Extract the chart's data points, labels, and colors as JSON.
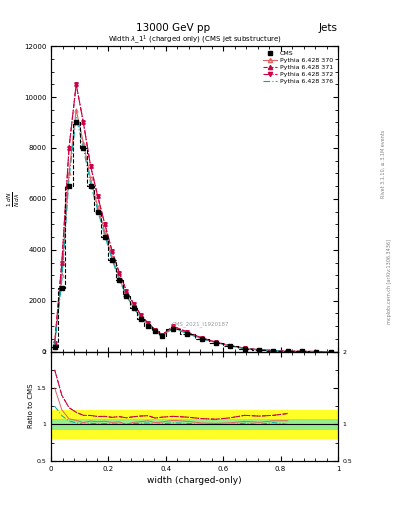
{
  "title_top": "13000 GeV pp",
  "title_right": "Jets",
  "plot_title": "Width $\\lambda$_1$^{1}$ (charged only) (CMS jet substructure)",
  "xlabel": "width (charged-only)",
  "ylabel_main": "$\\frac{1}{N}\\frac{dN}{d\\lambda}$",
  "ylabel_ratio": "Ratio to CMS",
  "watermark": "CMS_2021_I1920187",
  "right_label1": "Rivet 3.1.10, ≥ 3.1M events",
  "right_label2": "mcplots.cern.ch [arXiv:1306.3436]",
  "x_edges": [
    0.0,
    0.025,
    0.05,
    0.075,
    0.1,
    0.125,
    0.15,
    0.175,
    0.2,
    0.225,
    0.25,
    0.275,
    0.3,
    0.325,
    0.35,
    0.375,
    0.4,
    0.45,
    0.5,
    0.55,
    0.6,
    0.65,
    0.7,
    0.75,
    0.8,
    0.85,
    0.9,
    0.95,
    1.0
  ],
  "x_centers": [
    0.0125,
    0.0375,
    0.0625,
    0.0875,
    0.1125,
    0.1375,
    0.1625,
    0.1875,
    0.2125,
    0.2375,
    0.2625,
    0.2875,
    0.3125,
    0.3375,
    0.3625,
    0.3875,
    0.425,
    0.475,
    0.525,
    0.575,
    0.625,
    0.675,
    0.725,
    0.775,
    0.825,
    0.875,
    0.925,
    0.975
  ],
  "cms_data": [
    200,
    2500,
    6500,
    9000,
    8000,
    6500,
    5500,
    4500,
    3600,
    2800,
    2200,
    1700,
    1300,
    1000,
    800,
    600,
    900,
    700,
    500,
    350,
    220,
    120,
    70,
    40,
    20,
    10,
    5,
    2
  ],
  "p370_data": [
    300,
    3000,
    7000,
    9500,
    8200,
    6800,
    5700,
    4700,
    3700,
    2900,
    2200,
    1750,
    1350,
    1050,
    820,
    620,
    950,
    730,
    510,
    355,
    225,
    125,
    72,
    42,
    21,
    11,
    5,
    2
  ],
  "p371_data": [
    350,
    3500,
    8000,
    10500,
    9000,
    7300,
    6100,
    5000,
    3950,
    3100,
    2400,
    1880,
    1450,
    1120,
    870,
    660,
    1000,
    770,
    540,
    375,
    240,
    135,
    78,
    45,
    23,
    12,
    6,
    2
  ],
  "p372_data": [
    350,
    3500,
    8000,
    10500,
    9000,
    7300,
    6100,
    5000,
    3950,
    3100,
    2400,
    1880,
    1450,
    1120,
    870,
    660,
    1000,
    770,
    540,
    375,
    240,
    135,
    78,
    45,
    23,
    12,
    6,
    2
  ],
  "p376_data": [
    250,
    2800,
    6800,
    9200,
    8000,
    6600,
    5550,
    4550,
    3620,
    2820,
    2200,
    1720,
    1320,
    1020,
    800,
    605,
    920,
    710,
    500,
    350,
    220,
    122,
    70,
    41,
    20,
    10,
    5,
    2
  ],
  "cms_color": "#000000",
  "p370_color": "#e06060",
  "p371_color": "#cc0044",
  "p372_color": "#cc0044",
  "p376_color": "#00aaaa",
  "ylim_main": [
    0,
    12000
  ],
  "ylim_ratio": [
    0.5,
    2.0
  ],
  "xlim": [
    0.0,
    1.0
  ],
  "ratio_green_halfwidth": 0.07,
  "ratio_yellow_halfwidth": 0.2
}
